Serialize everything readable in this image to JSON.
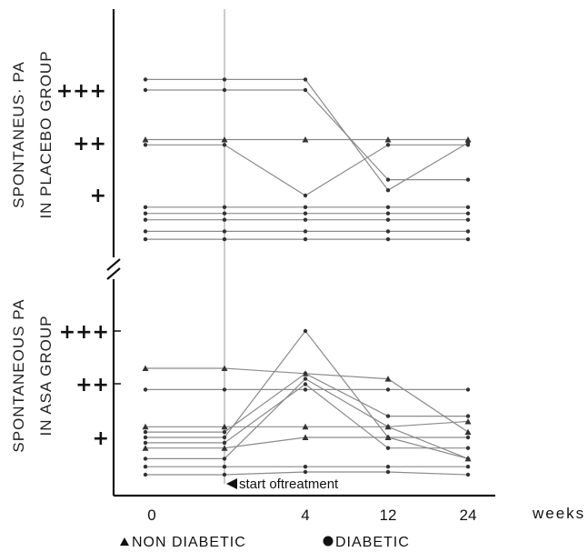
{
  "chart_data": [
    {
      "type": "line",
      "panel": "placebo",
      "title_lines": [
        "SPONTANEUS· PA",
        "IN PLACEBO GROUP"
      ],
      "x": [
        "0",
        "",
        "4",
        "12",
        "24"
      ],
      "xlabel": "weeks",
      "y_levels": [
        "+",
        "++",
        "+++"
      ],
      "series": [
        {
          "marker": "diabetic",
          "values": [
            3.2,
            3.2,
            3.2,
            1.1,
            2.0
          ]
        },
        {
          "marker": "diabetic",
          "values": [
            3.0,
            3.0,
            3.0,
            1.3,
            1.3
          ]
        },
        {
          "marker": "non_diabetic",
          "values": [
            2.06,
            2.06,
            2.06,
            2.06,
            2.06
          ]
        },
        {
          "marker": "diabetic",
          "values": [
            1.96,
            1.96,
            1.0,
            1.96,
            1.96
          ]
        },
        {
          "marker": "diabetic",
          "values": [
            0.78,
            0.78,
            0.78,
            0.78,
            0.78
          ]
        },
        {
          "marker": "diabetic",
          "values": [
            0.66,
            0.66,
            0.66,
            0.66,
            0.66
          ]
        },
        {
          "marker": "diabetic",
          "values": [
            0.54,
            0.54,
            0.54,
            0.54,
            0.54
          ]
        },
        {
          "marker": "diabetic",
          "values": [
            0.32,
            0.32,
            0.32,
            0.32,
            0.32
          ]
        },
        {
          "marker": "diabetic",
          "values": [
            0.17,
            0.17,
            0.17,
            0.17,
            0.17
          ]
        }
      ]
    },
    {
      "type": "line",
      "panel": "asa",
      "title_lines": [
        "SPONTANEOUS PA",
        "IN ASA GROUP"
      ],
      "x": [
        "0",
        "",
        "4",
        "12",
        "24"
      ],
      "xlabel": "weeks",
      "y_levels": [
        "+",
        "++",
        "+++"
      ],
      "annotation": "start oftreatment",
      "series": [
        {
          "marker": "non_diabetic",
          "values": [
            2.3,
            2.3,
            2.2,
            2.1,
            1.1
          ]
        },
        {
          "marker": "diabetic",
          "values": [
            1.9,
            1.9,
            1.9,
            1.9,
            1.9
          ]
        },
        {
          "marker": "diabetic",
          "values": [
            1.0,
            1.0,
            3.0,
            1.0,
            1.0
          ]
        },
        {
          "marker": "non_diabetic",
          "values": [
            1.2,
            1.2,
            1.2,
            1.2,
            1.3
          ]
        },
        {
          "marker": "diabetic",
          "values": [
            1.1,
            1.1,
            2.2,
            1.4,
            1.4
          ]
        },
        {
          "marker": "diabetic",
          "values": [
            0.9,
            0.9,
            2.0,
            0.8,
            0.8
          ]
        },
        {
          "marker": "non_diabetic",
          "values": [
            0.8,
            0.8,
            1.0,
            1.0,
            0.6
          ]
        },
        {
          "marker": "diabetic",
          "values": [
            0.6,
            0.6,
            2.1,
            1.2,
            0.6
          ]
        },
        {
          "marker": "diabetic",
          "values": [
            0.45,
            0.45,
            0.45,
            0.45,
            0.45
          ]
        },
        {
          "marker": "diabetic",
          "values": [
            0.3,
            0.3,
            0.35,
            0.35,
            0.3
          ]
        }
      ]
    }
  ],
  "legend": {
    "non_diabetic": "NON DIABETIC",
    "diabetic": "DIABETIC"
  }
}
